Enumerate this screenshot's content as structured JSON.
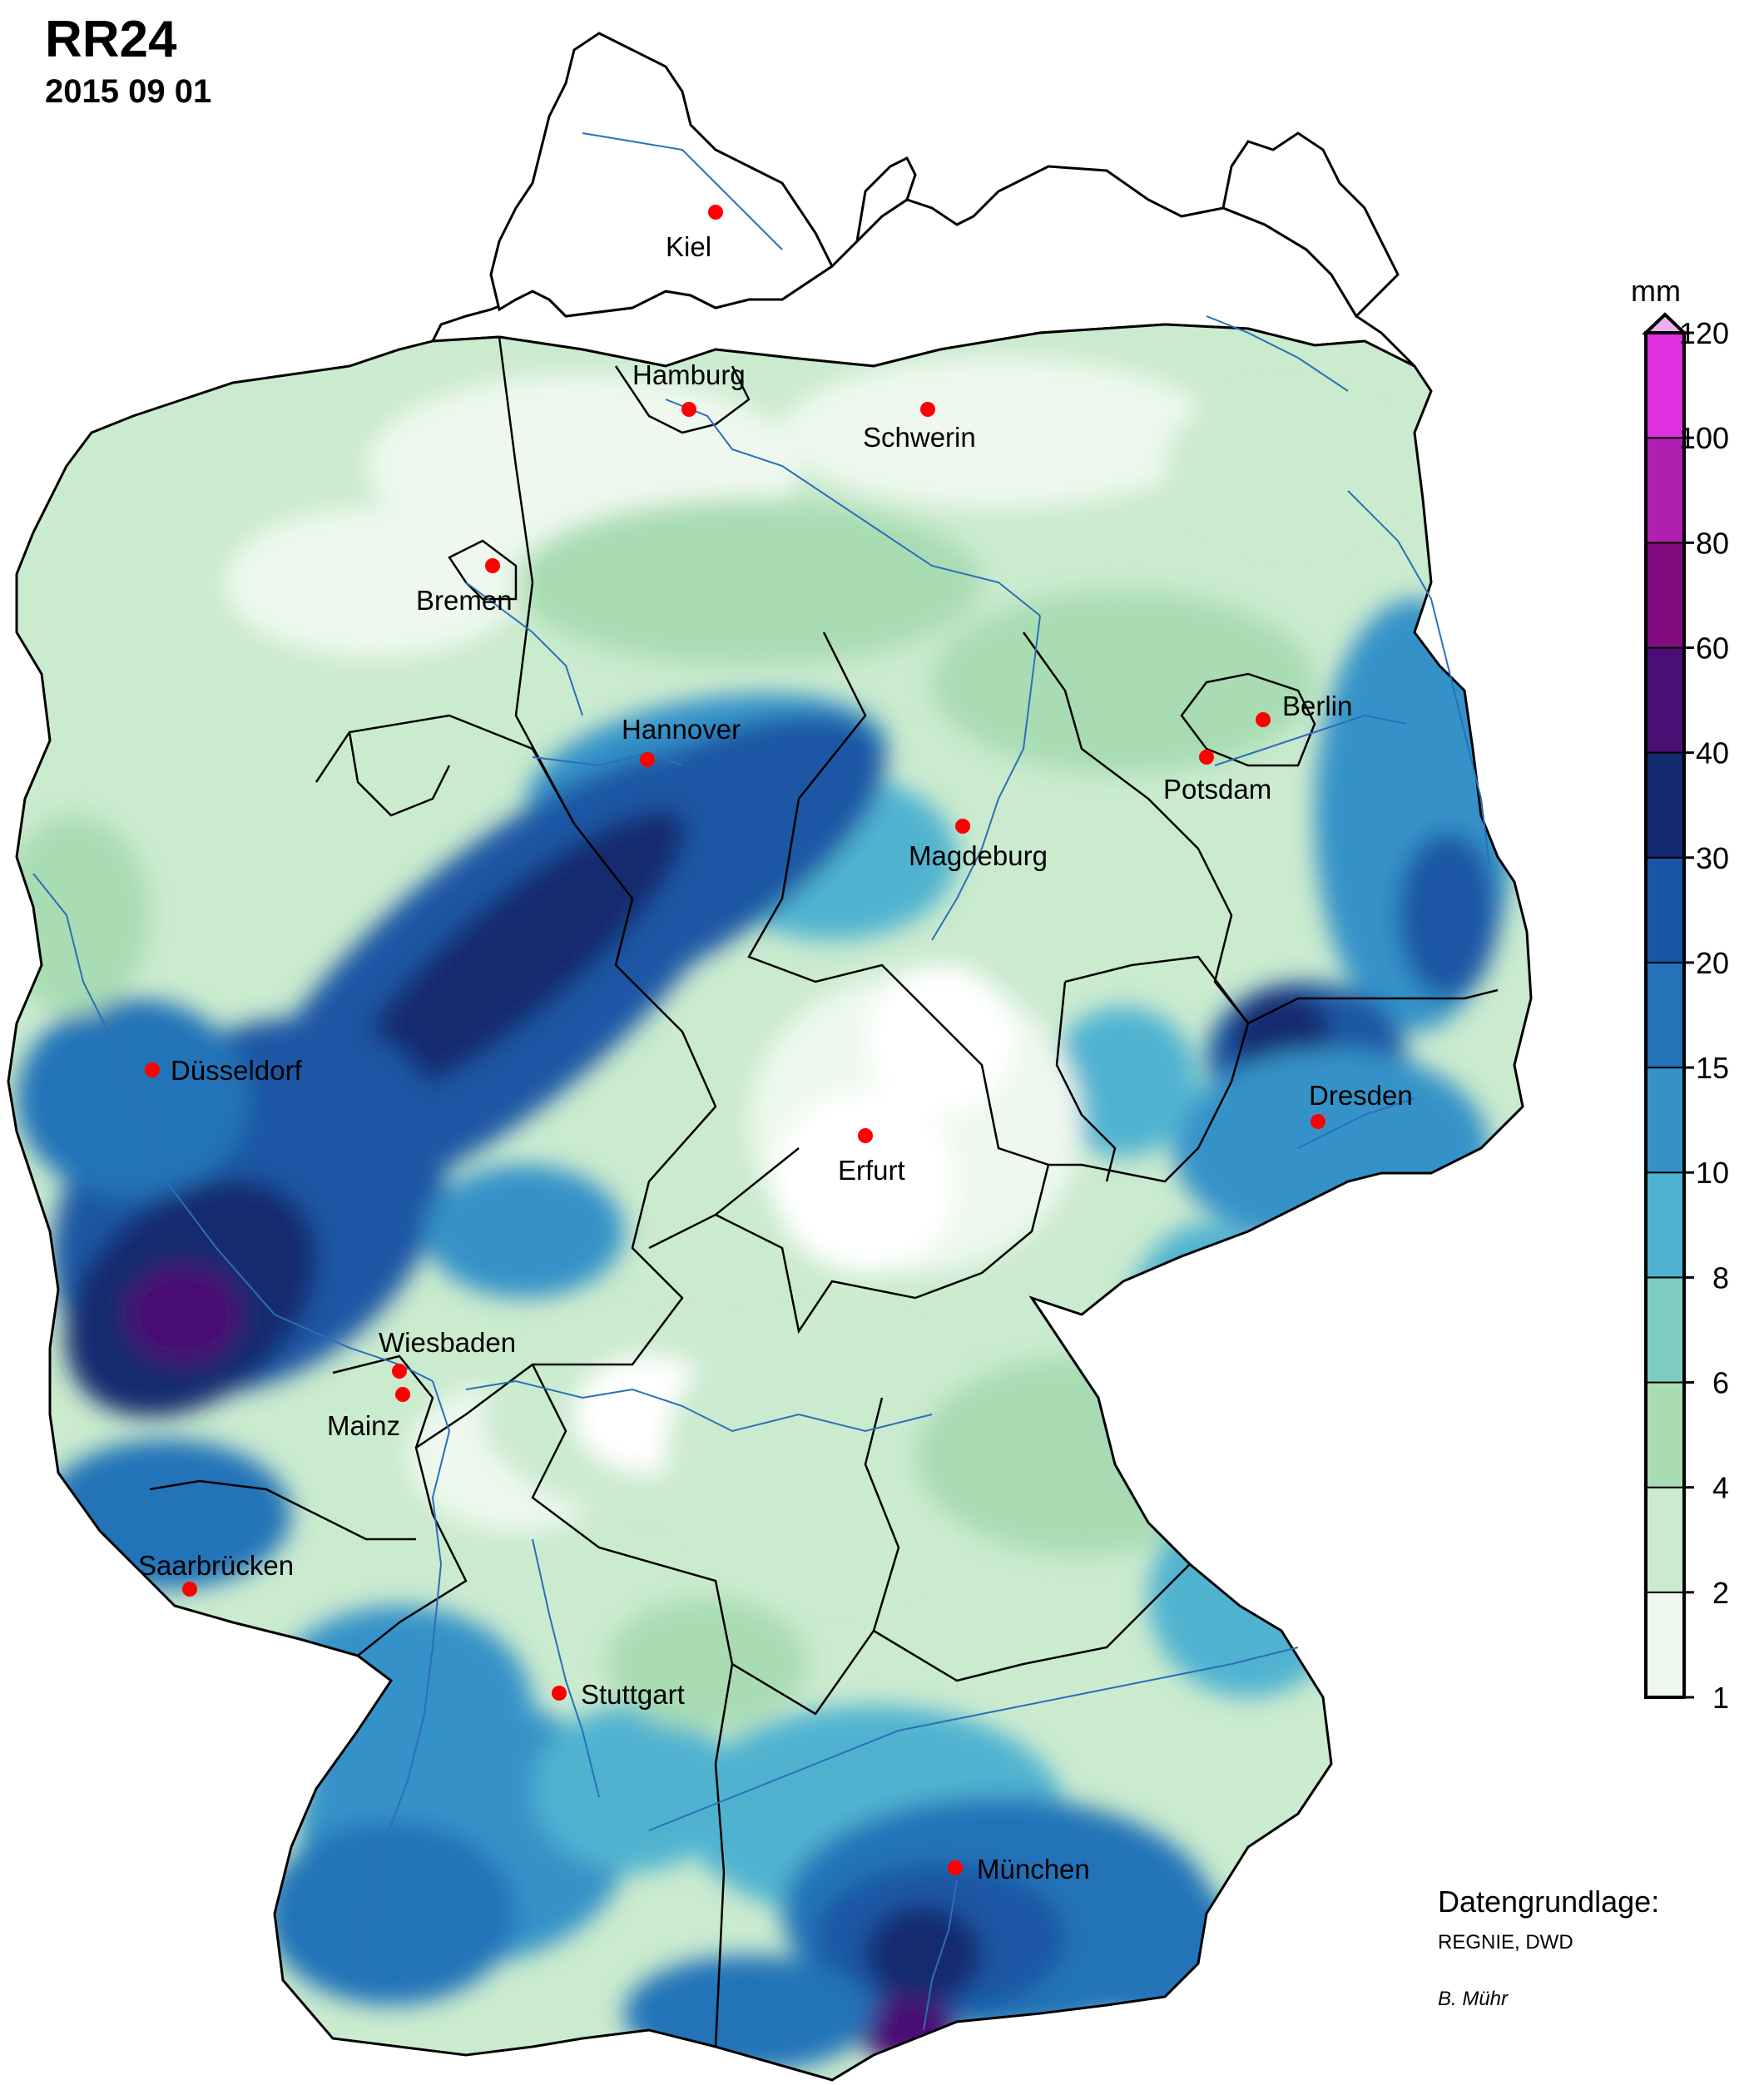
{
  "title": "RR24",
  "date": "2015 09 01",
  "legend": {
    "unit": "mm",
    "ticks": [
      "1",
      "2",
      "4",
      "6",
      "8",
      "10",
      "15",
      "20",
      "30",
      "40",
      "60",
      "80",
      "100",
      "120"
    ],
    "colors": [
      "#eef8ee",
      "#cbebcf",
      "#a9dcb3",
      "#7ecbc0",
      "#4fb3d0",
      "#3592c8",
      "#2473b8",
      "#1a56a4",
      "#142a70",
      "#4a0f74",
      "#800c80",
      "#b01fb0",
      "#e030e0"
    ]
  },
  "cities": [
    {
      "name": "Kiel",
      "label": "Kiel"
    },
    {
      "name": "Hamburg",
      "label": "Hamburg"
    },
    {
      "name": "Schwerin",
      "label": "Schwerin"
    },
    {
      "name": "Bremen",
      "label": "Bremen"
    },
    {
      "name": "Hannover",
      "label": "Hannover"
    },
    {
      "name": "Berlin",
      "label": "Berlin"
    },
    {
      "name": "Potsdam",
      "label": "Potsdam"
    },
    {
      "name": "Magdeburg",
      "label": "Magdeburg"
    },
    {
      "name": "Düsseldorf",
      "label": "Düsseldorf"
    },
    {
      "name": "Erfurt",
      "label": "Erfurt"
    },
    {
      "name": "Dresden",
      "label": "Dresden"
    },
    {
      "name": "Wiesbaden",
      "label": "Wiesbaden"
    },
    {
      "name": "Mainz",
      "label": "Mainz"
    },
    {
      "name": "Saarbrücken",
      "label": "Saarbrücken"
    },
    {
      "name": "Stuttgart",
      "label": "Stuttgart"
    },
    {
      "name": "München",
      "label": "München"
    }
  ],
  "credits": {
    "line1": "Datengrundlage:",
    "line2": "REGNIE, DWD",
    "line3": "B. Mühr"
  }
}
